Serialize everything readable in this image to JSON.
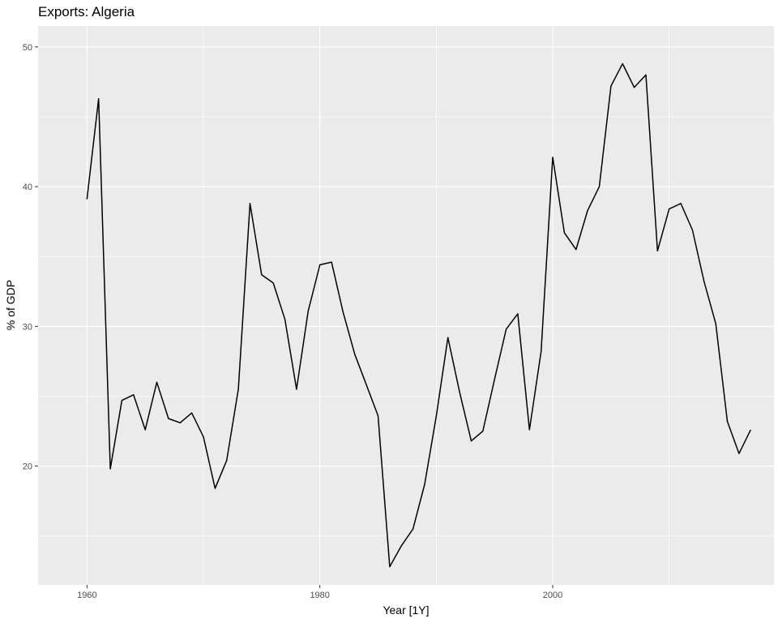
{
  "chart_data": {
    "type": "line",
    "title": "Exports: Algeria",
    "xlabel": "Year [1Y]",
    "ylabel": "% of GDP",
    "xlim": [
      1955.8,
      2019.0
    ],
    "ylim": [
      11.5,
      51.5
    ],
    "x_ticks": [
      1960,
      1980,
      2000
    ],
    "x_tick_labels": [
      "1960",
      "1980",
      "2000"
    ],
    "x_minor_ticks": [
      1970,
      1990,
      2010
    ],
    "y_ticks": [
      20,
      30,
      40,
      50
    ],
    "y_tick_labels": [
      "20",
      "30",
      "40",
      "50"
    ],
    "y_minor_ticks": [
      15,
      25,
      35,
      45
    ],
    "grid": true,
    "legend": "none",
    "colors": {
      "panel": "#ebebeb",
      "grid": "#ffffff",
      "line": "#000000",
      "tick": "#4d4d4d"
    },
    "series": [
      {
        "x": [
          1960,
          1961,
          1962,
          1963,
          1964,
          1965,
          1966,
          1967,
          1968,
          1969,
          1970,
          1971,
          1972,
          1973,
          1974,
          1975,
          1976,
          1977,
          1978,
          1979,
          1980,
          1981,
          1982,
          1983,
          1984,
          1985,
          1986,
          1987,
          1988,
          1989,
          1990,
          1991,
          1992,
          1993,
          1994,
          1995,
          1996,
          1997,
          1998,
          1999,
          2000,
          2001,
          2002,
          2003,
          2004,
          2005,
          2006,
          2007,
          2008,
          2009,
          2010,
          2011,
          2012,
          2013,
          2014,
          2015,
          2016,
          2017
        ],
        "values": [
          39.1,
          46.3,
          19.8,
          24.7,
          25.1,
          22.6,
          26.0,
          23.4,
          23.1,
          23.8,
          22.1,
          18.4,
          20.4,
          25.5,
          38.8,
          33.7,
          33.1,
          30.5,
          25.5,
          31.1,
          34.4,
          34.6,
          31.0,
          28.0,
          25.8,
          23.6,
          12.8,
          14.3,
          15.5,
          18.7,
          23.6,
          29.2,
          25.3,
          21.8,
          22.5,
          26.2,
          29.8,
          30.9,
          22.6,
          28.2,
          42.1,
          36.7,
          35.5,
          38.3,
          40.0,
          47.2,
          48.8,
          47.1,
          48.0,
          35.4,
          38.4,
          38.8,
          36.9,
          33.2,
          30.2,
          23.2,
          20.9,
          22.6
        ]
      }
    ]
  }
}
